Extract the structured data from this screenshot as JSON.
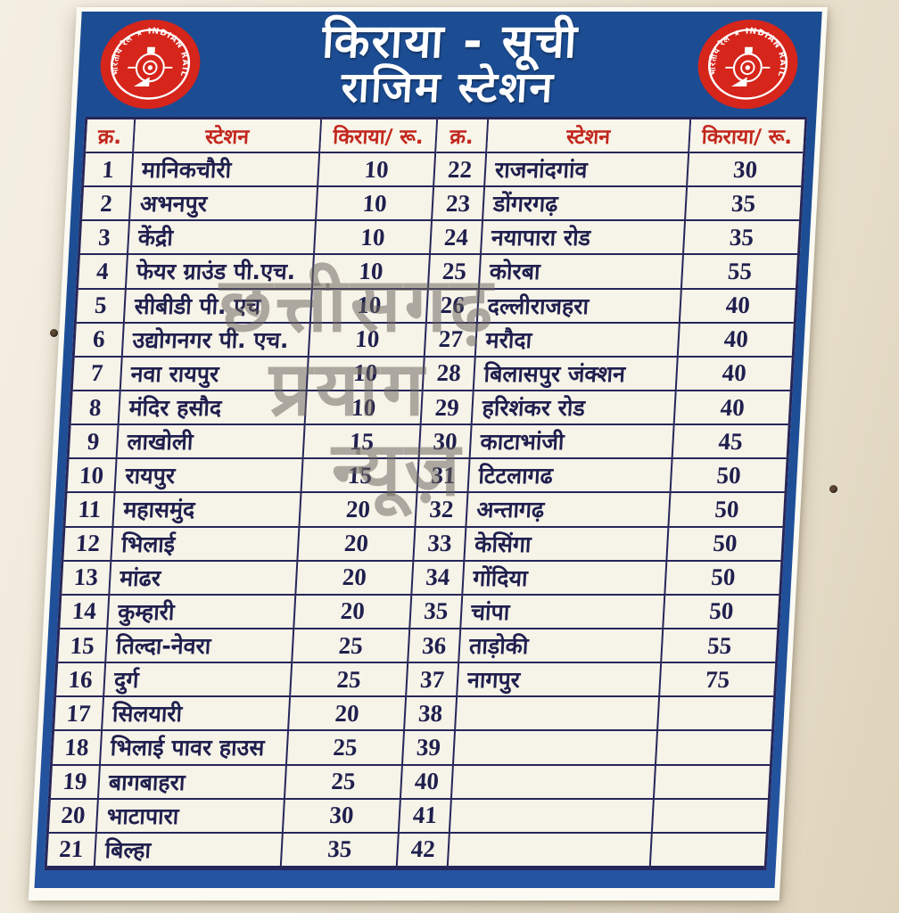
{
  "colors": {
    "board_blue": "#1e4f97",
    "paper": "#f6f3e8",
    "line_ink": "#26265a",
    "header_text_red": "#c2271d",
    "cell_ink": "#1f1f4e",
    "emblem_red": "#d6251b",
    "watermark_gray": "#6a645c"
  },
  "header": {
    "title_line1": "किराया - सूची",
    "title_line2": "राजिम स्टेशन",
    "emblem_text": "भारतीय रेल ★ INDIAN RAILWAYS"
  },
  "table": {
    "columns": [
      "क्र.",
      "स्टेशन",
      "किराया/ रू."
    ],
    "left_rows": [
      {
        "sn": "1",
        "station": "मानिकचौरी",
        "fare": "10"
      },
      {
        "sn": "2",
        "station": "अभनपुर",
        "fare": "10"
      },
      {
        "sn": "3",
        "station": "केंद्री",
        "fare": "10"
      },
      {
        "sn": "4",
        "station": "फेयर ग्राउंड पी.एच.",
        "fare": "10"
      },
      {
        "sn": "5",
        "station": "सीबीडी पी. एच",
        "fare": "10"
      },
      {
        "sn": "6",
        "station": "उद्योगनगर पी. एच.",
        "fare": "10"
      },
      {
        "sn": "7",
        "station": "नवा रायपुर",
        "fare": "10"
      },
      {
        "sn": "8",
        "station": "मंदिर हसौद",
        "fare": "10"
      },
      {
        "sn": "9",
        "station": "लाखोली",
        "fare": "15"
      },
      {
        "sn": "10",
        "station": "रायपुर",
        "fare": "15"
      },
      {
        "sn": "11",
        "station": "महासमुंद",
        "fare": "20"
      },
      {
        "sn": "12",
        "station": "भिलाई",
        "fare": "20"
      },
      {
        "sn": "13",
        "station": "मांढर",
        "fare": "20"
      },
      {
        "sn": "14",
        "station": "कुम्हारी",
        "fare": "20"
      },
      {
        "sn": "15",
        "station": "तिल्दा-नेवरा",
        "fare": "25"
      },
      {
        "sn": "16",
        "station": "दुर्ग",
        "fare": "25"
      },
      {
        "sn": "17",
        "station": "सिलयारी",
        "fare": "20"
      },
      {
        "sn": "18",
        "station": "भिलाई पावर हाउस",
        "fare": "25"
      },
      {
        "sn": "19",
        "station": "बागबाहरा",
        "fare": "25"
      },
      {
        "sn": "20",
        "station": "भाटापारा",
        "fare": "30"
      },
      {
        "sn": "21",
        "station": "बिल्हा",
        "fare": "35"
      }
    ],
    "right_rows": [
      {
        "sn": "22",
        "station": "राजनांदगांव",
        "fare": "30"
      },
      {
        "sn": "23",
        "station": "डोंगरगढ़",
        "fare": "35"
      },
      {
        "sn": "24",
        "station": "नयापारा रोड",
        "fare": "35"
      },
      {
        "sn": "25",
        "station": "कोरबा",
        "fare": "55"
      },
      {
        "sn": "26",
        "station": "दल्लीराजहरा",
        "fare": "40"
      },
      {
        "sn": "27",
        "station": "मरौदा",
        "fare": "40"
      },
      {
        "sn": "28",
        "station": "बिलासपुर जंक्शन",
        "fare": "40"
      },
      {
        "sn": "29",
        "station": "हरिशंकर रोड",
        "fare": "40"
      },
      {
        "sn": "30",
        "station": "काटाभांजी",
        "fare": "45"
      },
      {
        "sn": "31",
        "station": "टिटलागढ",
        "fare": "50"
      },
      {
        "sn": "32",
        "station": "अन्तागढ़",
        "fare": "50"
      },
      {
        "sn": "33",
        "station": "केसिंगा",
        "fare": "50"
      },
      {
        "sn": "34",
        "station": "गोंदिया",
        "fare": "50"
      },
      {
        "sn": "35",
        "station": "चांपा",
        "fare": "50"
      },
      {
        "sn": "36",
        "station": "ताड़ोकी",
        "fare": "55"
      },
      {
        "sn": "37",
        "station": "नागपुर",
        "fare": "75"
      },
      {
        "sn": "38",
        "station": "",
        "fare": ""
      },
      {
        "sn": "39",
        "station": "",
        "fare": ""
      },
      {
        "sn": "40",
        "station": "",
        "fare": ""
      },
      {
        "sn": "41",
        "station": "",
        "fare": ""
      },
      {
        "sn": "42",
        "station": "",
        "fare": ""
      }
    ]
  },
  "watermark": {
    "line1": "छत्तीसगढ़",
    "line2": "प्रयाग",
    "line3": "न्यूज़"
  }
}
